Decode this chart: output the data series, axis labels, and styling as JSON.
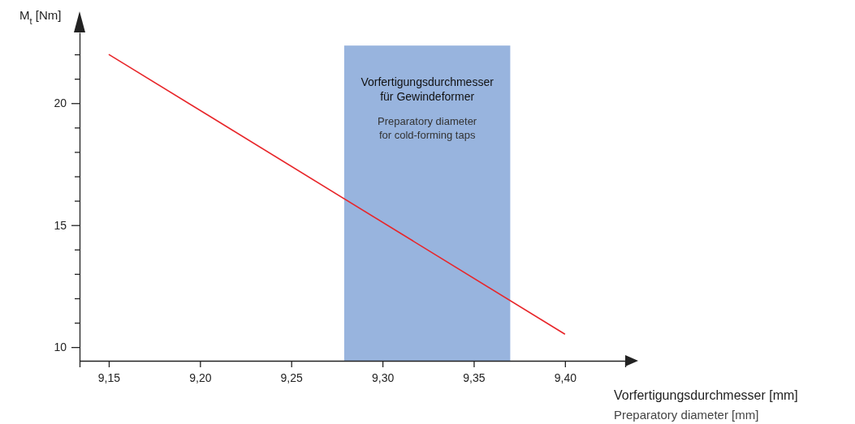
{
  "chart_data": {
    "type": "line",
    "ylabel": "M$_{t}$ [Nm]",
    "xlabel": "Vorfertigungsdurchmesser [mm]\nPreparatory diameter [mm]",
    "x": [
      9.15,
      9.4
    ],
    "series": [
      {
        "color": "#e8262a",
        "values": [
          22,
          10.53
        ]
      }
    ],
    "xlim": [
      9.134,
      9.433
    ],
    "ylim": [
      9.44,
      22.9
    ],
    "xticks": [
      {
        "value": 9.15,
        "label": "9,15"
      },
      {
        "value": 9.2,
        "label": "9,20"
      },
      {
        "value": 9.25,
        "label": "9,25"
      },
      {
        "value": 9.3,
        "label": "9,30"
      },
      {
        "value": 9.35,
        "label": "9,35"
      },
      {
        "value": 9.4,
        "label": "9,40"
      }
    ],
    "yticks": [
      10,
      {
        "value": 11,
        "label": null
      },
      {
        "value": 12,
        "label": null
      },
      {
        "value": 13,
        "label": null
      },
      {
        "value": 14,
        "label": null
      },
      15,
      {
        "value": 16,
        "label": null
      },
      {
        "value": 17,
        "label": null
      },
      {
        "value": 18,
        "label": null
      },
      {
        "value": 19,
        "label": null
      },
      20,
      {
        "value": 21,
        "label": null
      },
      {
        "value": 22,
        "label": null
      }
    ],
    "bands": [
      {
        "axis": "x",
        "from": 9.279,
        "to": 9.37,
        "color": "#98b4de",
        "label": "Vorfertigungsdurchmesser\nfür Gewindeformer\n\nPreparatory diameter\nfor cold-forming taps"
      }
    ],
    "line_style": "solid"
  }
}
